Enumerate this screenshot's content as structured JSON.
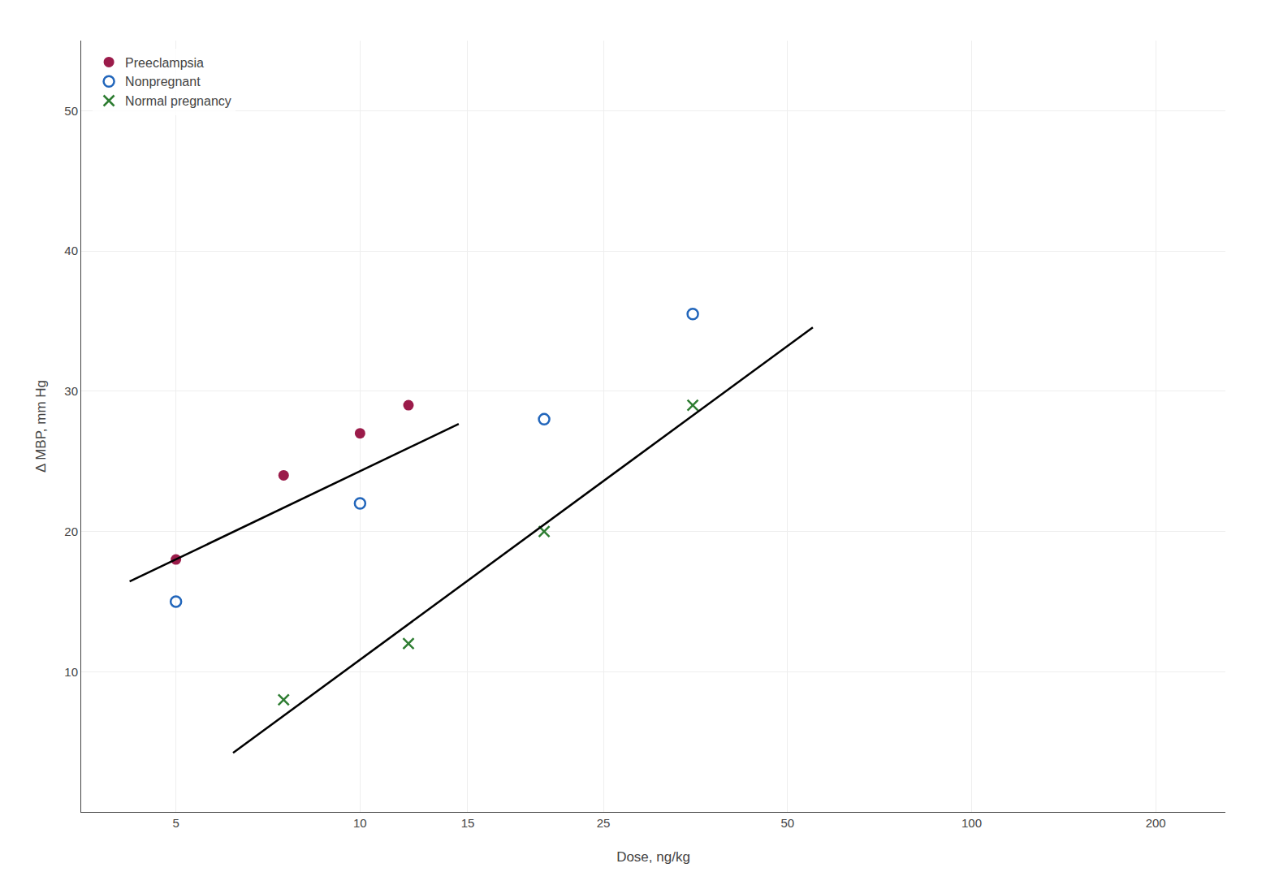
{
  "chart_data": {
    "type": "scatter",
    "xlabel": "Dose, ng/kg",
    "ylabel": "Δ MBP, mm Hg",
    "log": "x",
    "grid": true,
    "legend": "upper left",
    "xlim": [
      3.5,
      260
    ],
    "xticks": [
      5,
      10,
      15,
      25,
      50,
      100,
      200
    ],
    "ylim": [
      0,
      55
    ],
    "yticks": [
      10,
      20,
      30,
      40,
      50
    ],
    "series": [
      {
        "name": "Preeclampsia",
        "type": "scatter",
        "marker": "circle",
        "color": "#9B1B4A",
        "x": [
          5,
          7.5,
          10,
          12
        ],
        "values": [
          18,
          24,
          27,
          29
        ]
      },
      {
        "name": "Nonpregnant",
        "type": "scatter",
        "marker": "circle-open",
        "color": "#2266BB",
        "x": [
          5,
          10,
          20,
          35
        ],
        "values": [
          15,
          22,
          28,
          35.5
        ]
      },
      {
        "name": "Normal pregnancy",
        "type": "scatter",
        "marker": "x",
        "color": "#2E7D32",
        "x": [
          7.5,
          12,
          20,
          35
        ],
        "values": [
          8,
          12,
          20,
          29
        ]
      },
      {
        "type": "line",
        "line_style": "solid",
        "color": "#000000",
        "x": [
          4.2,
          14.5
        ],
        "values": [
          16.43,
          27.67
        ]
      },
      {
        "type": "line",
        "line_style": "solid",
        "color": "#000000",
        "x": [
          6.2,
          55
        ],
        "values": [
          4.21,
          34.55
        ]
      }
    ]
  }
}
